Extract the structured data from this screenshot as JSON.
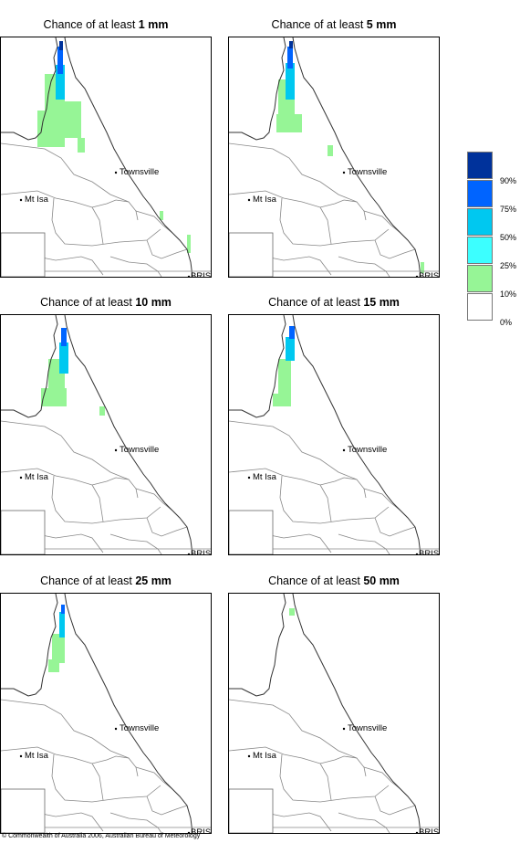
{
  "panels": [
    {
      "title_prefix": "Chance of at least ",
      "title_amount": "1 mm",
      "level": "1"
    },
    {
      "title_prefix": "Chance of at least ",
      "title_amount": "5 mm",
      "level": "5"
    },
    {
      "title_prefix": "Chance of at least ",
      "title_amount": "10 mm",
      "level": "10"
    },
    {
      "title_prefix": "Chance of at least ",
      "title_amount": "15 mm",
      "level": "15"
    },
    {
      "title_prefix": "Chance of at least ",
      "title_amount": "25 mm",
      "level": "25"
    },
    {
      "title_prefix": "Chance of at least ",
      "title_amount": "50 mm",
      "level": "50"
    }
  ],
  "map_labels": {
    "townsville": "Townsville",
    "mt_isa": "Mt Isa",
    "brisbane": "BRIS"
  },
  "legend": {
    "labels": [
      "90%",
      "75%",
      "50%",
      "25%",
      "10%",
      "0%"
    ],
    "colors": [
      "#00329b",
      "#0064ff",
      "#00c8f0",
      "#3cffff",
      "#96f596",
      "#ffffff"
    ]
  },
  "copyright": "© Commonwealth of Australia 2006, Australian Bureau of Meteorology"
}
